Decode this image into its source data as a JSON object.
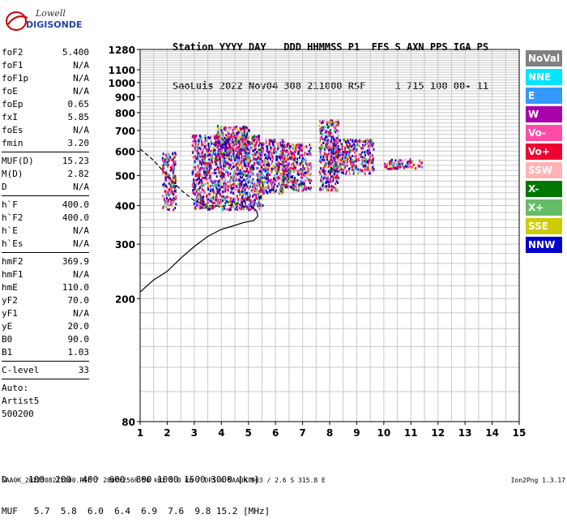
{
  "logo": {
    "line1": "Lowell",
    "line2": "DIGISONDE"
  },
  "header": {
    "line1": "Station YYYY DAY   DDD HHMMSS P1  FFS S AXN PPS IGA PS",
    "line2": "SaoLuis 2022 Nov04 308 211000 RSF     1 715 100 00- 11"
  },
  "sidebar": {
    "group1": [
      {
        "label": "foF2",
        "value": "5.400"
      },
      {
        "label": "foF1",
        "value": "N/A"
      },
      {
        "label": "foF1p",
        "value": "N/A"
      },
      {
        "label": "foE",
        "value": "N/A"
      },
      {
        "label": "foEp",
        "value": "0.65"
      },
      {
        "label": "fxI",
        "value": "5.85"
      },
      {
        "label": "foEs",
        "value": "N/A"
      },
      {
        "label": "fmin",
        "value": "3.20"
      }
    ],
    "group2": [
      {
        "label": "MUF(D)",
        "value": "15.23"
      },
      {
        "label": "M(D)",
        "value": "2.82"
      },
      {
        "label": "D",
        "value": "N/A"
      }
    ],
    "group3": [
      {
        "label": "h`F",
        "value": "400.0"
      },
      {
        "label": "h`F2",
        "value": "400.0"
      },
      {
        "label": "h`E",
        "value": "N/A"
      },
      {
        "label": "h`Es",
        "value": "N/A"
      }
    ],
    "group4": [
      {
        "label": "hmF2",
        "value": "369.9"
      },
      {
        "label": "hmF1",
        "value": "N/A"
      },
      {
        "label": "hmE",
        "value": "110.0"
      },
      {
        "label": "yF2",
        "value": "70.0"
      },
      {
        "label": "yF1",
        "value": "N/A"
      },
      {
        "label": "yE",
        "value": "20.0"
      },
      {
        "label": "B0",
        "value": "90.0"
      },
      {
        "label": "B1",
        "value": "1.03"
      }
    ],
    "clevel": {
      "label": "C-level",
      "value": "33"
    },
    "auto": [
      "Auto:",
      "Artist5",
      "500200"
    ]
  },
  "legend": [
    {
      "label": "NoVal",
      "color": "#808080"
    },
    {
      "label": "NNE",
      "color": "#00e5ff"
    },
    {
      "label": "E",
      "color": "#3399ff"
    },
    {
      "label": "W",
      "color": "#aa00aa"
    },
    {
      "label": "Vo-",
      "color": "#ff4da6"
    },
    {
      "label": "Vo+",
      "color": "#ee0033"
    },
    {
      "label": "SSW",
      "color": "#ffb3b3"
    },
    {
      "label": "X-",
      "color": "#007700"
    },
    {
      "label": "X+",
      "color": "#66bb66"
    },
    {
      "label": "SSE",
      "color": "#cccc00"
    },
    {
      "label": "NNW",
      "color": "#0000cc"
    }
  ],
  "bottom": {
    "d_line": "D    100  200  400  600  800 1000 1500 3000 [km]",
    "muf_line": "MUF   5.7  5.8  6.0  6.4  6.9  7.6  9.8 15.2 [MHz]"
  },
  "footer": {
    "left": "SAA0K_2022308211000.RSF / 280fx256h 50 kHz 5.0 km / DPS-4 SAA0K 903 / 2.6 S 315.8 E",
    "right": "Ion2Png 1.3.17"
  },
  "chart_data": {
    "type": "scatter",
    "title": "",
    "xlabel": "",
    "ylabel": "",
    "xlim": [
      1,
      15
    ],
    "ylim": [
      80,
      1280
    ],
    "y_scale": "log",
    "grid": true,
    "x_ticks": [
      1,
      2,
      3,
      4,
      5,
      6,
      7,
      8,
      9,
      10,
      11,
      12,
      13,
      14,
      15
    ],
    "y_ticks_major": [
      80,
      200,
      300,
      400,
      500,
      600,
      700,
      800,
      900,
      1000,
      1100,
      1280
    ],
    "series": [
      {
        "kind": "echo_clusters",
        "clusters": [
          {
            "x": [
              1.8,
              2.3
            ],
            "y": [
              390,
              600
            ]
          },
          {
            "x": [
              2.9,
              5.5
            ],
            "y": [
              390,
              680
            ]
          },
          {
            "x": [
              3.8,
              5.0
            ],
            "y": [
              560,
              730
            ]
          },
          {
            "x": [
              5.4,
              6.3
            ],
            "y": [
              440,
              660
            ]
          },
          {
            "x": [
              6.2,
              7.3
            ],
            "y": [
              450,
              640
            ]
          },
          {
            "x": [
              7.6,
              8.3
            ],
            "y": [
              450,
              760
            ]
          },
          {
            "x": [
              8.0,
              9.6
            ],
            "y": [
              510,
              660
            ]
          },
          {
            "x": [
              10.0,
              11.4
            ],
            "y": [
              530,
              570
            ]
          }
        ]
      },
      {
        "kind": "profile_line",
        "style": "solid",
        "points": [
          [
            1.0,
            210
          ],
          [
            1.5,
            230
          ],
          [
            2.0,
            245
          ],
          [
            2.5,
            270
          ],
          [
            3.0,
            295
          ],
          [
            3.5,
            318
          ],
          [
            4.0,
            335
          ],
          [
            4.5,
            345
          ],
          [
            4.8,
            352
          ],
          [
            5.0,
            355
          ],
          [
            5.2,
            358
          ],
          [
            5.35,
            370
          ],
          [
            5.3,
            385
          ],
          [
            5.1,
            398
          ]
        ]
      },
      {
        "kind": "profile_line",
        "style": "dashed",
        "points": [
          [
            1.0,
            610
          ],
          [
            1.5,
            560
          ],
          [
            2.0,
            500
          ],
          [
            2.5,
            450
          ],
          [
            3.0,
            415
          ],
          [
            3.5,
            400
          ],
          [
            4.0,
            398
          ],
          [
            4.5,
            402
          ],
          [
            5.0,
            420
          ]
        ]
      }
    ]
  }
}
